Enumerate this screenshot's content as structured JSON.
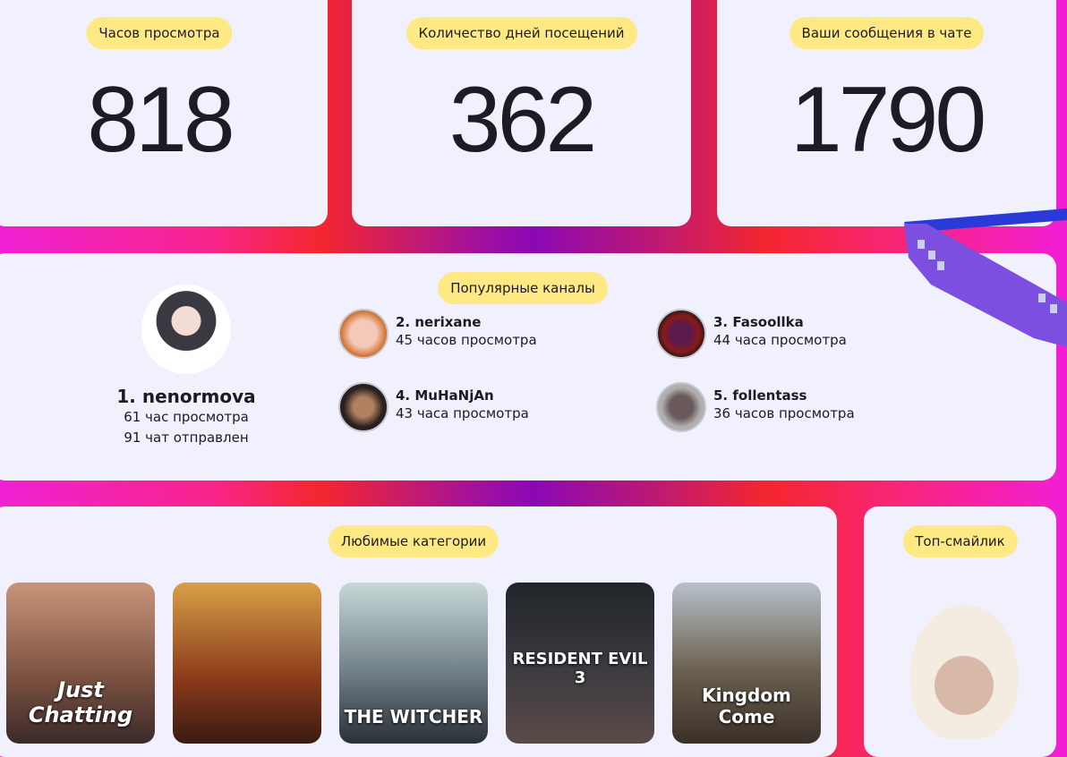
{
  "stats": [
    {
      "label": "Часов просмотра",
      "value": "818"
    },
    {
      "label": "Количество дней посещений",
      "value": "362"
    },
    {
      "label": "Ваши сообщения в чате",
      "value": "1790"
    }
  ],
  "channels": {
    "title": "Популярные каналы",
    "top": {
      "name": "1. nenormova",
      "hours": "61 час просмотра",
      "chats": "91 чат отправлен"
    },
    "others": [
      {
        "name": "2. nerixane",
        "hours": "45 часов просмотра"
      },
      {
        "name": "3. Fasoollka",
        "hours": "44 часа просмотра"
      },
      {
        "name": "4. MuHaNjAn",
        "hours": "43 часа просмотра"
      },
      {
        "name": "5. follentass",
        "hours": "36 часов просмотра"
      }
    ]
  },
  "categories": {
    "title": "Любимые категории",
    "covers": [
      "Just Chatting",
      "",
      "THE WITCHER",
      "RESIDENT EVIL 3",
      "Kingdom Come"
    ]
  },
  "emote": {
    "title": "Топ-смайлик"
  },
  "colors": {
    "card": "#f1f0fd",
    "pill": "#ffe985",
    "accent": "#f5262e"
  }
}
